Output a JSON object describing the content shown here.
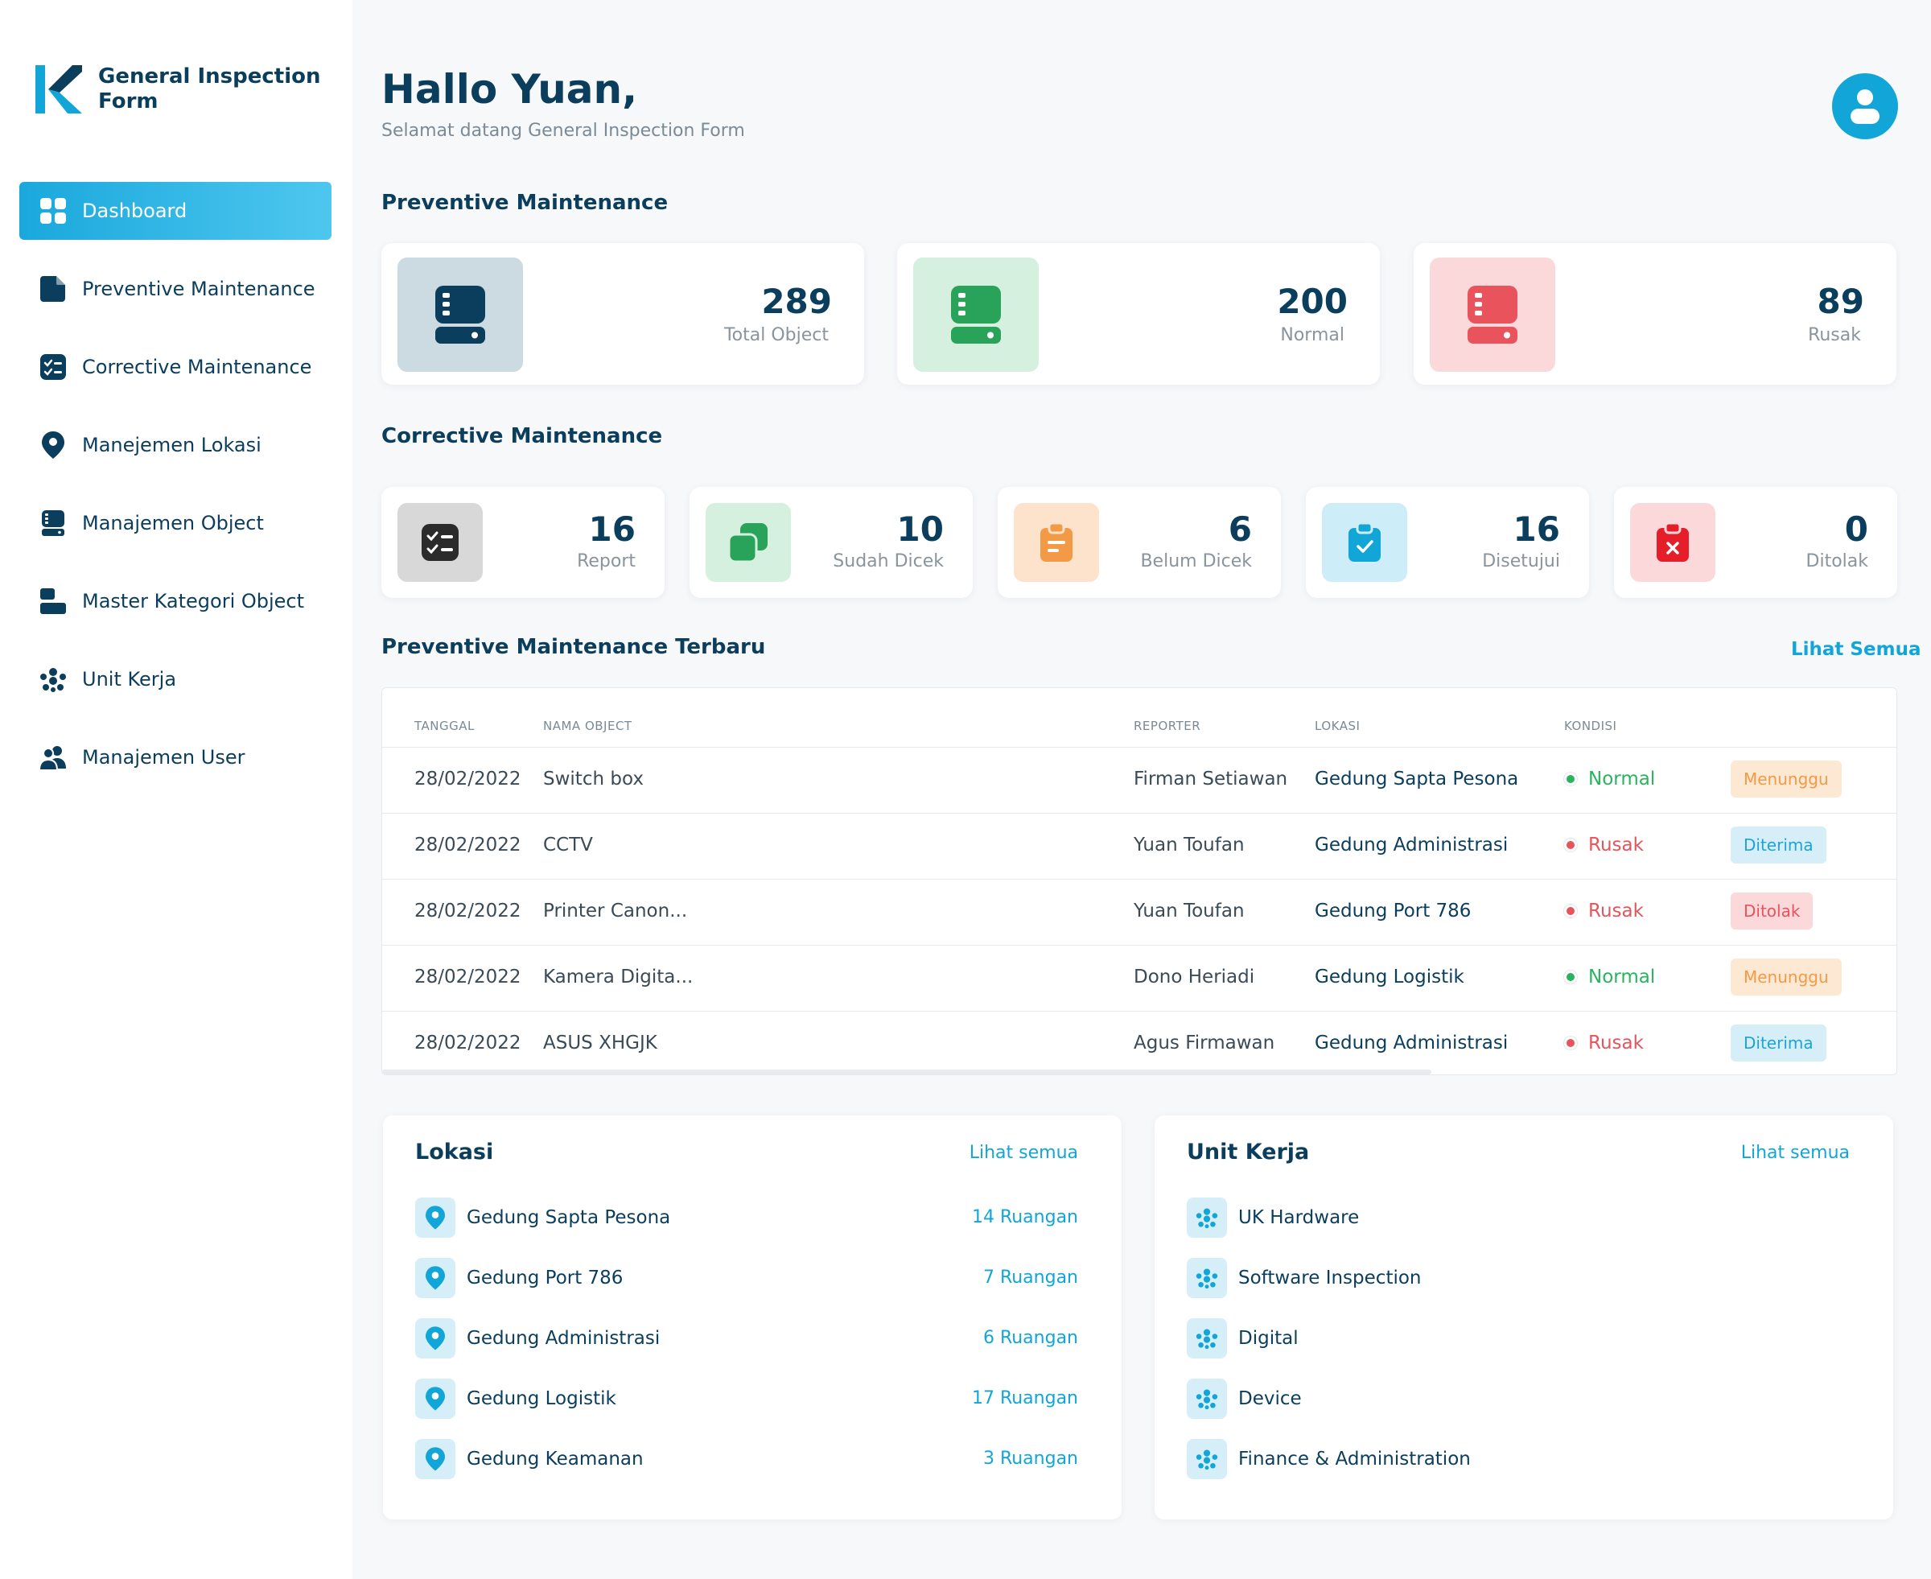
{
  "brand": {
    "line1": "General Inspection",
    "line2": "Form"
  },
  "sidebar": {
    "items": [
      {
        "label": "Dashboard",
        "icon": "grid-icon"
      },
      {
        "label": "Preventive Maintenance",
        "icon": "file-icon"
      },
      {
        "label": "Corrective Maintenance",
        "icon": "checklist-icon"
      },
      {
        "label": "Manejemen Lokasi",
        "icon": "location-pin-icon"
      },
      {
        "label": "Manajemen Object",
        "icon": "server-icon"
      },
      {
        "label": "Master Kategori Object",
        "icon": "category-icon"
      },
      {
        "label": "Unit Kerja",
        "icon": "team-icon"
      },
      {
        "label": "Manajemen User",
        "icon": "users-icon"
      }
    ]
  },
  "header": {
    "greeting": "Hallo Yuan,",
    "subtitle": "Selamat datang General Inspection Form"
  },
  "preventive": {
    "title": "Preventive Maintenance",
    "cards": [
      {
        "value": "289",
        "label": "Total Object",
        "icon": "server-icon",
        "color": "#0b3d5c",
        "bg": "#ccdae2"
      },
      {
        "value": "200",
        "label": "Normal",
        "icon": "server-icon",
        "color": "#2aa35a",
        "bg": "#d5f0df"
      },
      {
        "value": "89",
        "label": "Rusak",
        "icon": "server-icon",
        "color": "#e8535c",
        "bg": "#fbd9db"
      }
    ]
  },
  "corrective": {
    "title": "Corrective Maintenance",
    "cards": [
      {
        "value": "16",
        "label": "Report",
        "icon": "checklist-icon",
        "color": "#2b2b2b",
        "bg": "#d8d8d8"
      },
      {
        "value": "10",
        "label": "Sudah Dicek",
        "icon": "copy-icon",
        "color": "#2aa35a",
        "bg": "#d5f0df"
      },
      {
        "value": "6",
        "label": "Belum Dicek",
        "icon": "clipboard-icon",
        "color": "#f39a46",
        "bg": "#fde3cc"
      },
      {
        "value": "16",
        "label": "Disetujui",
        "icon": "clipboard-check-icon",
        "color": "#12a6d8",
        "bg": "#cdeef9"
      },
      {
        "value": "0",
        "label": "Ditolak",
        "icon": "clipboard-x-icon",
        "color": "#e61e2a",
        "bg": "#fbd9db"
      }
    ]
  },
  "latest": {
    "title": "Preventive Maintenance Terbaru",
    "see_all": "Lihat Semua",
    "columns": {
      "date": "TANGGAL",
      "object": "NAMA OBJECT",
      "reporter": "REPORTER",
      "location": "LOKASI",
      "condition": "KONDISI"
    },
    "rows": [
      {
        "date": "28/02/2022",
        "object": "Switch box",
        "reporter": "Firman Setiawan",
        "location": "Gedung Sapta Pesona",
        "condition": "Normal",
        "status": "Menunggu"
      },
      {
        "date": "28/02/2022",
        "object": "CCTV",
        "reporter": "Yuan Toufan",
        "location": "Gedung Administrasi",
        "condition": "Rusak",
        "status": "Diterima"
      },
      {
        "date": "28/02/2022",
        "object": "Printer Canon...",
        "reporter": "Yuan Toufan",
        "location": "Gedung Port 786",
        "condition": "Rusak",
        "status": "Ditolak"
      },
      {
        "date": "28/02/2022",
        "object": "Kamera Digita...",
        "reporter": "Dono Heriadi",
        "location": "Gedung Logistik",
        "condition": "Normal",
        "status": "Menunggu"
      },
      {
        "date": "28/02/2022",
        "object": "ASUS XHGJK",
        "reporter": "Agus Firmawan",
        "location": "Gedung Administrasi",
        "condition": "Rusak",
        "status": "Diterima"
      }
    ],
    "colors": {
      "normal": "#2ab35e",
      "rusak": "#e8535c",
      "menunggu_text": "#f39a46",
      "menunggu_bg": "#fde8d4",
      "diterima_text": "#1ea3d6",
      "diterima_bg": "#d6eef8",
      "ditolak_text": "#e8535c",
      "ditolak_bg": "#fbd9db"
    }
  },
  "locations": {
    "title": "Lokasi",
    "see_all": "Lihat semua",
    "items": [
      {
        "name": "Gedung Sapta Pesona",
        "count": "14 Ruangan"
      },
      {
        "name": "Gedung Port 786",
        "count": "7 Ruangan"
      },
      {
        "name": "Gedung Administrasi",
        "count": "6 Ruangan"
      },
      {
        "name": "Gedung Logistik",
        "count": "17 Ruangan"
      },
      {
        "name": "Gedung Keamanan",
        "count": "3 Ruangan"
      }
    ]
  },
  "units": {
    "title": "Unit Kerja",
    "see_all": "Lihat semua",
    "items": [
      {
        "name": "UK Hardware"
      },
      {
        "name": "Software Inspection"
      },
      {
        "name": "Digital"
      },
      {
        "name": "Device"
      },
      {
        "name": "Finance & Administration"
      }
    ]
  }
}
